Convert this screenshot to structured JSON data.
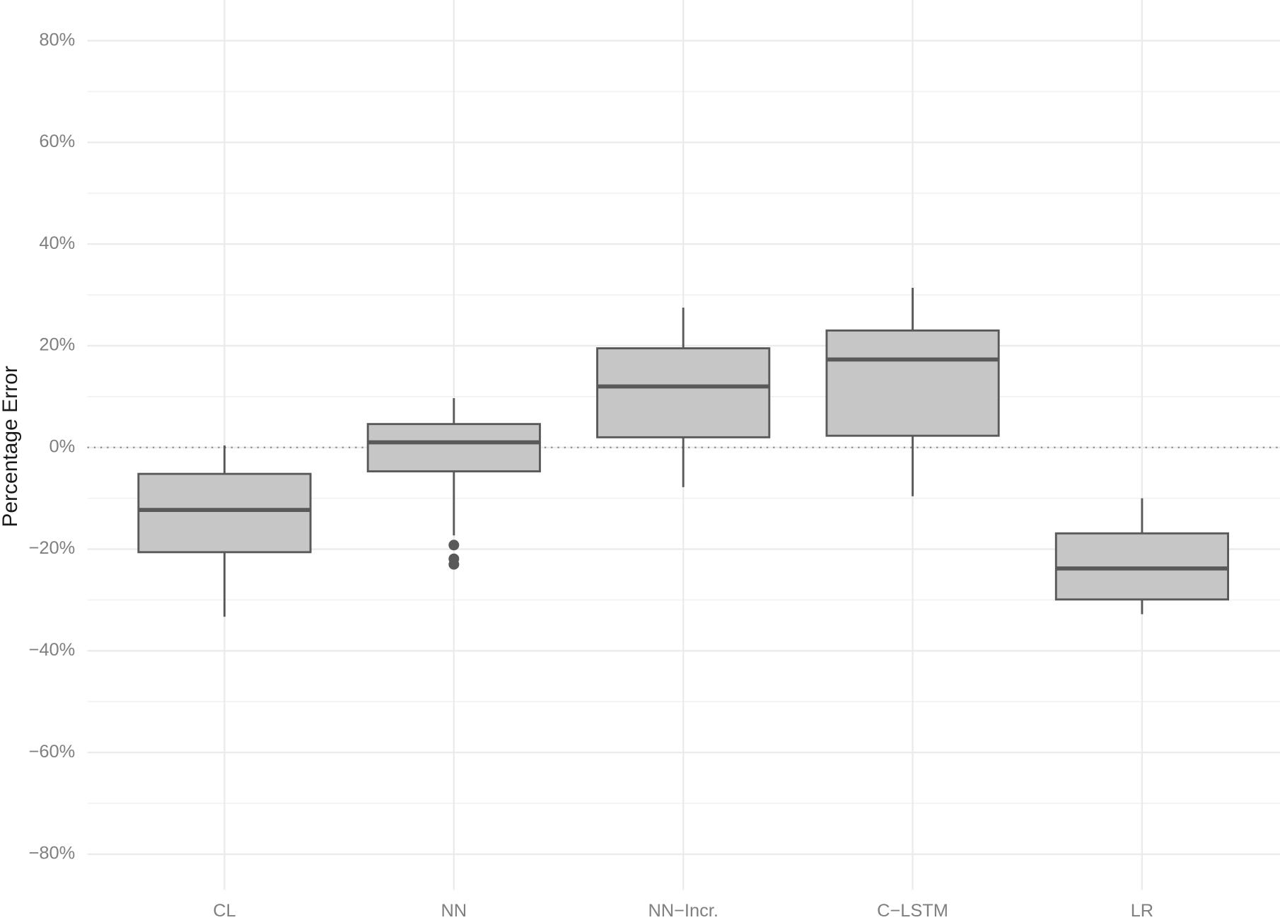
{
  "chart_data": {
    "type": "box",
    "y_label": "Percentage Error",
    "categories": [
      "CL",
      "NN",
      "NN−Incr.",
      "C−LSTM",
      "LR"
    ],
    "boxes": [
      {
        "whisker_low": -33.3,
        "q1": -20.6,
        "median": -12.3,
        "q3": -5.2,
        "whisker_high": 0.4,
        "outliers": []
      },
      {
        "whisker_low": -17.3,
        "q1": -4.7,
        "median": 1.0,
        "q3": 4.6,
        "whisker_high": 9.7,
        "outliers": [
          -19.2,
          -21.9,
          -23.0
        ]
      },
      {
        "whisker_low": -7.8,
        "q1": 2.0,
        "median": 12.0,
        "q3": 19.5,
        "whisker_high": 27.5,
        "outliers": []
      },
      {
        "whisker_low": -9.6,
        "q1": 2.3,
        "median": 17.3,
        "q3": 23.0,
        "whisker_high": 31.4,
        "outliers": []
      },
      {
        "whisker_low": -32.8,
        "q1": -29.9,
        "median": -23.8,
        "q3": -16.9,
        "whisker_high": -10.0,
        "outliers": []
      }
    ],
    "fill_color": "#c6c6c7",
    "line_color": "#595959",
    "ylim": [
      -87,
      88
    ],
    "yticks": [
      {
        "value": -80,
        "label": "−80%"
      },
      {
        "value": -60,
        "label": "−60%"
      },
      {
        "value": -40,
        "label": "−40%"
      },
      {
        "value": -20,
        "label": "−20%"
      },
      {
        "value": 0,
        "label": "0%"
      },
      {
        "value": 20,
        "label": "20%"
      },
      {
        "value": 40,
        "label": "40%"
      },
      {
        "value": 60,
        "label": "60%"
      },
      {
        "value": 80,
        "label": "80%"
      }
    ],
    "minor_yticks": [
      -70,
      -50,
      -30,
      -10,
      10,
      30,
      50,
      70
    ],
    "reference_line": 0,
    "grid": true
  }
}
